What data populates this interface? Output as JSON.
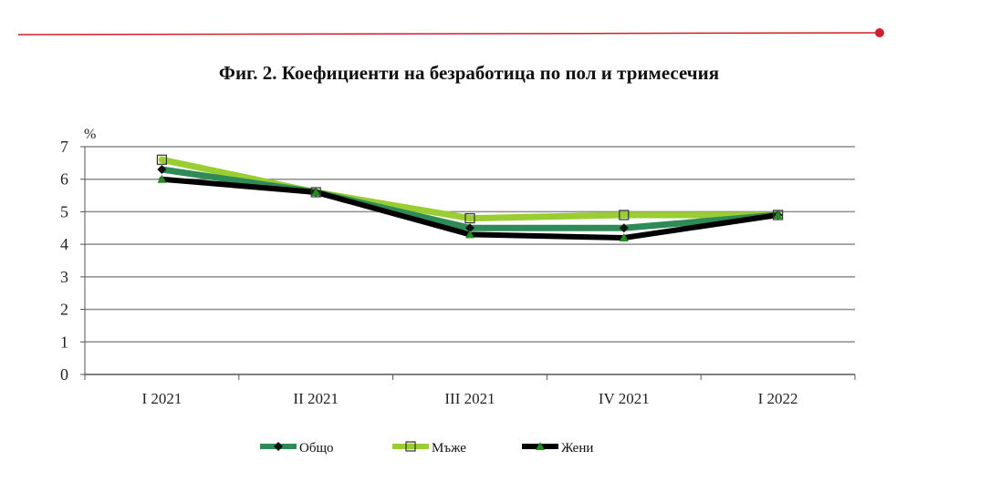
{
  "chart_data": {
    "type": "line",
    "title": "Фиг. 2. Коефициенти на безработица по пол и тримесечия",
    "ylabel": "%",
    "categories": [
      "I 2021",
      "II 2021",
      "III 2021",
      "IV 2021",
      "I 2022"
    ],
    "ylim": [
      0,
      7
    ],
    "yticks": [
      0,
      1,
      2,
      3,
      4,
      5,
      6,
      7
    ],
    "grid": true,
    "legend_position": "bottom",
    "series": [
      {
        "name": "Общо",
        "values": [
          6.3,
          5.6,
          4.5,
          4.5,
          4.9
        ],
        "color": "#2e8b57",
        "marker": "diamond",
        "marker_color": "#111111"
      },
      {
        "name": "Мъже",
        "values": [
          6.6,
          5.6,
          4.8,
          4.9,
          4.9
        ],
        "color": "#9acd32",
        "marker": "square",
        "marker_color": "#9acd32"
      },
      {
        "name": "Жени",
        "values": [
          6.0,
          5.6,
          4.3,
          4.2,
          4.9
        ],
        "color": "#000000",
        "marker": "triangle",
        "marker_color": "#228b22"
      }
    ]
  },
  "colors": {
    "accent_rule": "#d0202a",
    "grid": "#8c8c8c"
  }
}
